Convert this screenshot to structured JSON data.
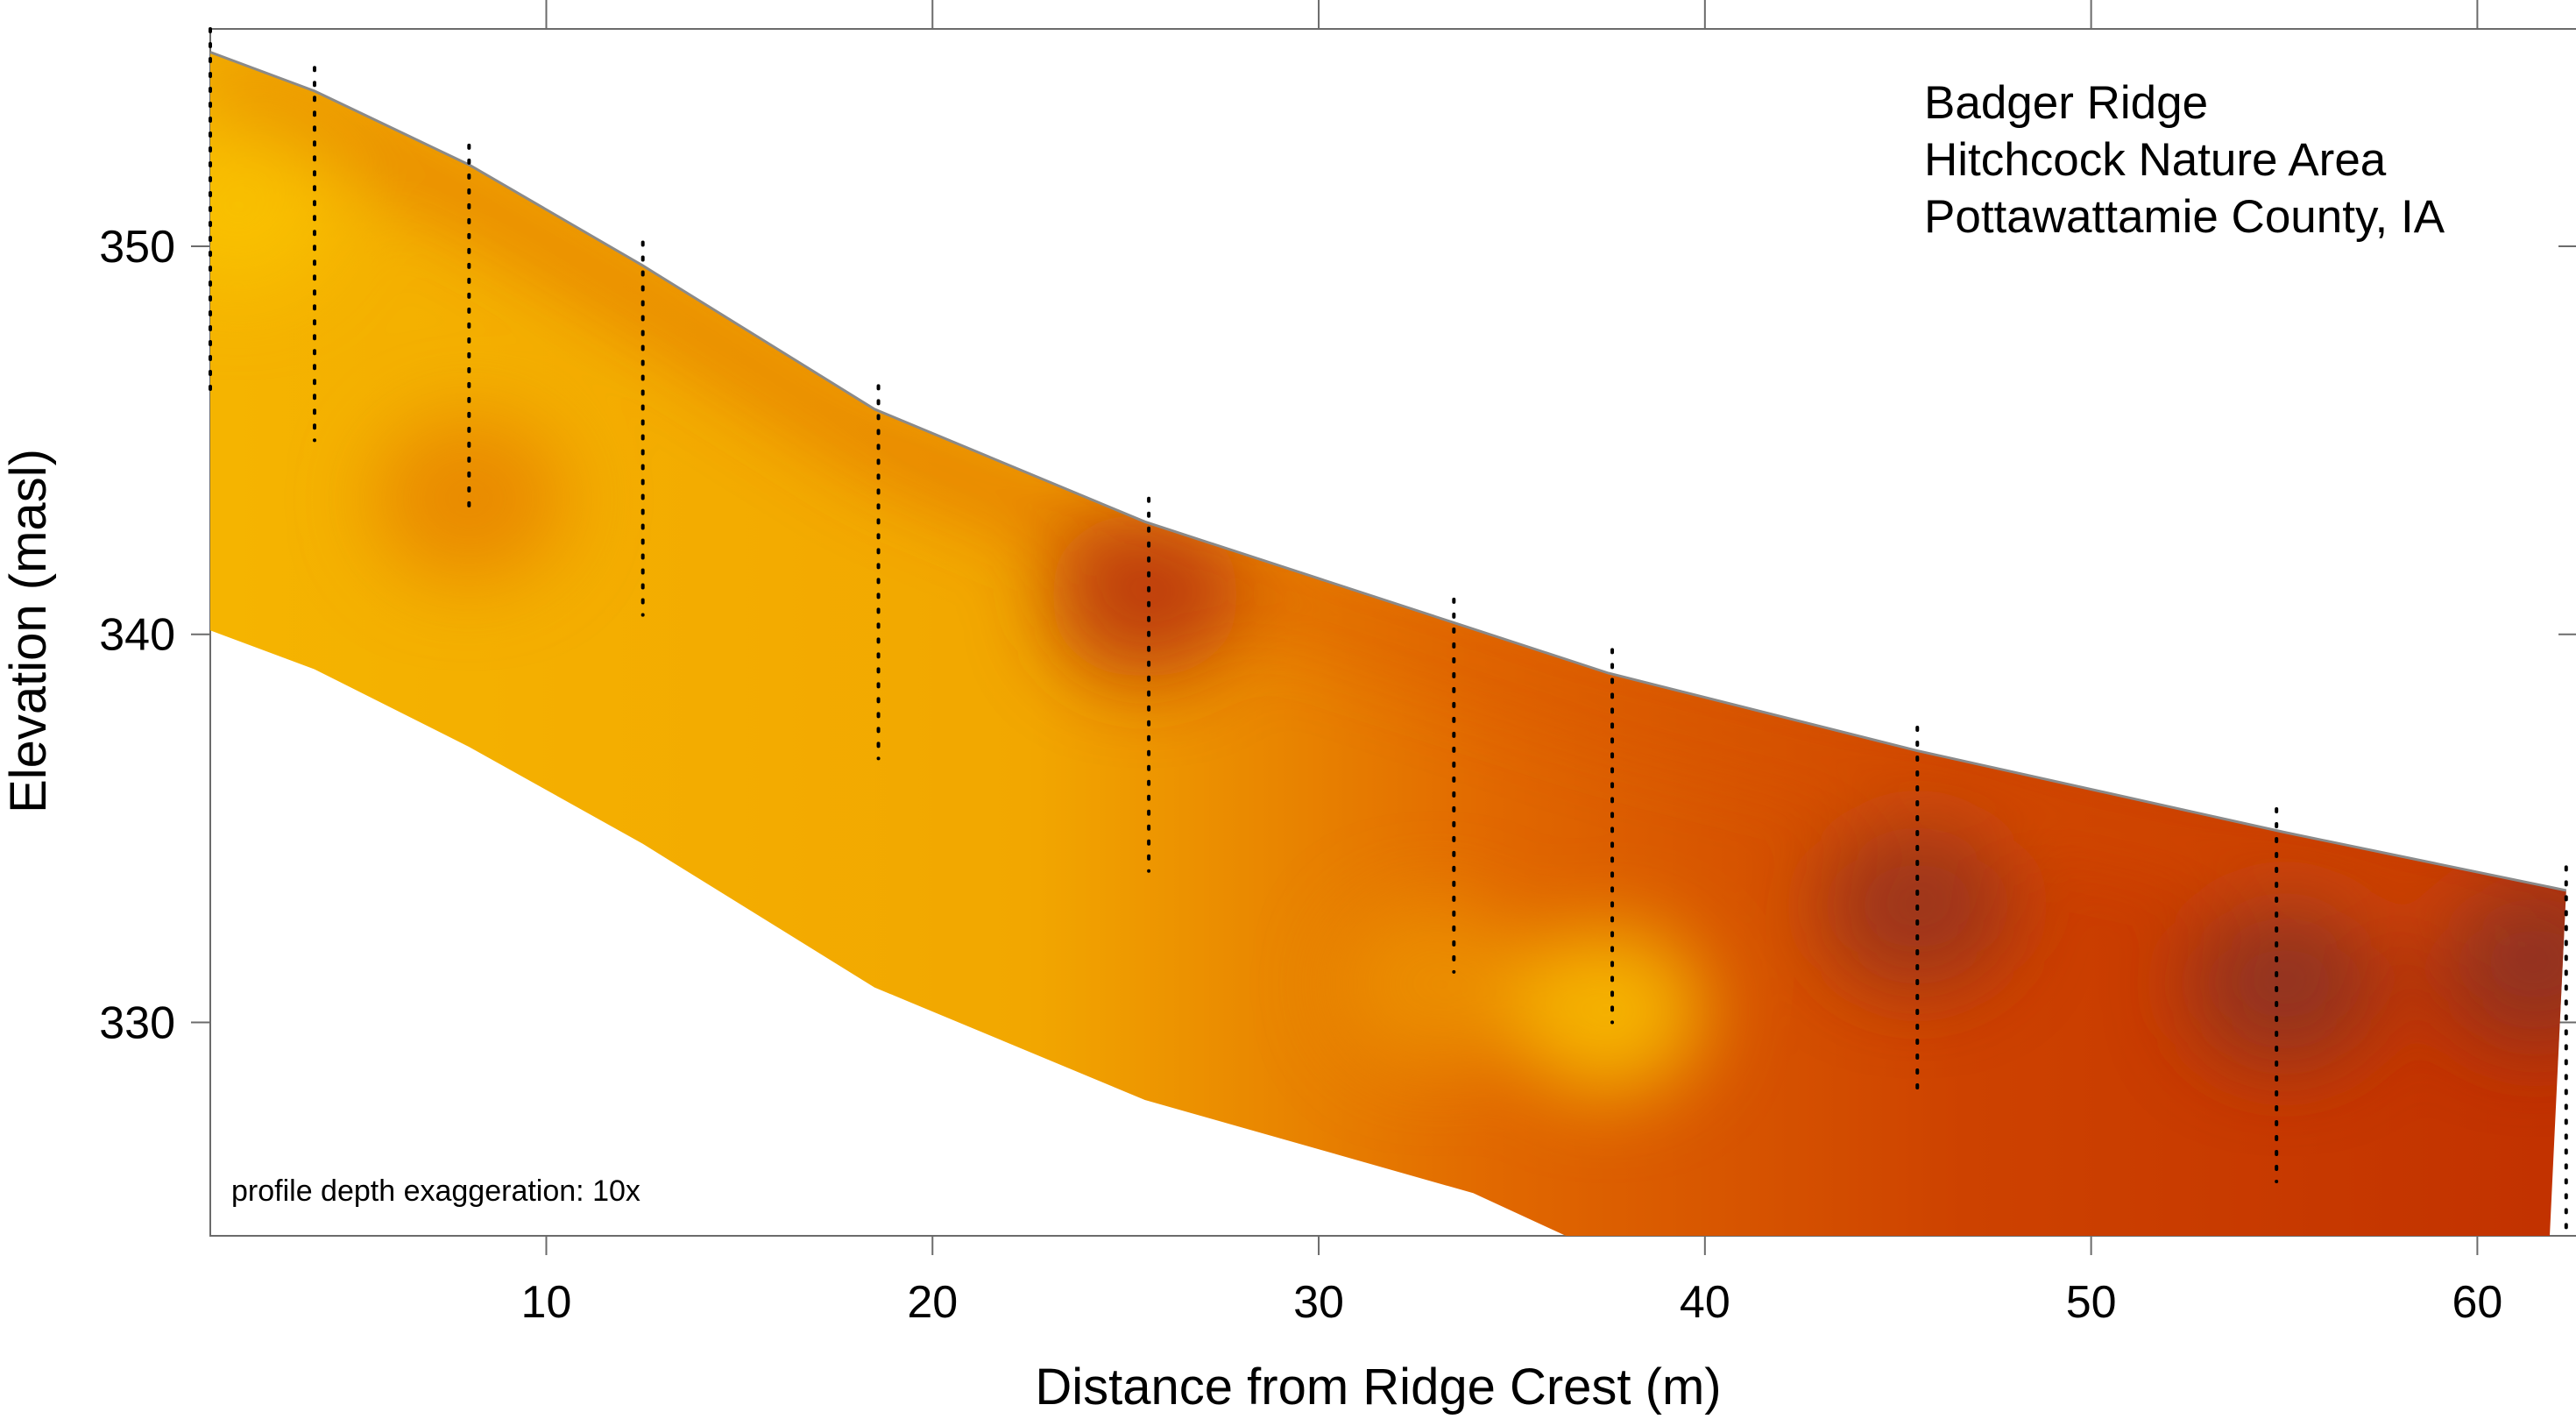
{
  "chart_data": {
    "type": "heatmap",
    "title": "",
    "xlabel": "Distance from Ridge Crest (m)",
    "ylabel": "Elevation (masl)",
    "xlim": [
      1.3,
      62.6
    ],
    "ylim": [
      324.5,
      355.6
    ],
    "x_ticks": [
      10,
      20,
      30,
      40,
      50,
      60
    ],
    "y_ticks": [
      330,
      340,
      350
    ],
    "annotation_lines": [
      "Badger Ridge",
      "Hitchcock Nature Area",
      "Pottawattamie County, IA"
    ],
    "note": "profile depth exaggeration: 10x",
    "grid": false,
    "colorscale": [
      "#f9c200",
      "#f0a000",
      "#dd5a00",
      "#c23200",
      "#8a3426"
    ],
    "surface_profile": [
      {
        "x": 1.3,
        "y": 355.0
      },
      {
        "x": 4,
        "y": 354.0
      },
      {
        "x": 8,
        "y": 352.1
      },
      {
        "x": 12.5,
        "y": 349.5
      },
      {
        "x": 18.5,
        "y": 345.8
      },
      {
        "x": 25.5,
        "y": 342.9
      },
      {
        "x": 33.5,
        "y": 340.3
      },
      {
        "x": 37.5,
        "y": 339.0
      },
      {
        "x": 45.5,
        "y": 337.0
      },
      {
        "x": 55,
        "y": 334.9
      },
      {
        "x": 62.3,
        "y": 333.4
      }
    ],
    "base_profile": [
      {
        "x": 1.3,
        "y": 340.1
      },
      {
        "x": 4,
        "y": 339.1
      },
      {
        "x": 8,
        "y": 337.1
      },
      {
        "x": 12.5,
        "y": 334.6
      },
      {
        "x": 18.5,
        "y": 330.9
      },
      {
        "x": 25.5,
        "y": 328.0
      },
      {
        "x": 34,
        "y": 325.6
      },
      {
        "x": 36.4,
        "y": 324.5
      }
    ],
    "boreholes": [
      {
        "x": 1.3,
        "top": 355.6,
        "bottom": 346.1
      },
      {
        "x": 4.0,
        "top": 354.6,
        "bottom": 345.0
      },
      {
        "x": 8.0,
        "top": 352.6,
        "bottom": 343.2
      },
      {
        "x": 12.5,
        "top": 350.1,
        "bottom": 340.5
      },
      {
        "x": 18.6,
        "top": 346.4,
        "bottom": 336.8
      },
      {
        "x": 25.6,
        "top": 343.5,
        "bottom": 333.9
      },
      {
        "x": 33.5,
        "top": 340.9,
        "bottom": 331.3
      },
      {
        "x": 37.6,
        "top": 339.6,
        "bottom": 330.0
      },
      {
        "x": 45.5,
        "top": 337.6,
        "bottom": 328.1
      },
      {
        "x": 54.8,
        "top": 335.5,
        "bottom": 325.9
      },
      {
        "x": 62.3,
        "top": 334.0,
        "bottom": 324.5
      }
    ],
    "hotspots": [
      {
        "x": 2.0,
        "y": 351.0,
        "level": 0.0
      },
      {
        "x": 8.0,
        "y": 343.5,
        "level": 0.35
      },
      {
        "x": 25.5,
        "y": 341.0,
        "level": 0.8
      },
      {
        "x": 45.5,
        "y": 333.0,
        "level": 0.95
      },
      {
        "x": 55.0,
        "y": 331.0,
        "level": 1.0
      },
      {
        "x": 61.5,
        "y": 331.5,
        "level": 1.0
      },
      {
        "x": 33.0,
        "y": 331.0,
        "level": 0.3
      },
      {
        "x": 37.5,
        "y": 330.3,
        "level": 0.0
      }
    ]
  }
}
